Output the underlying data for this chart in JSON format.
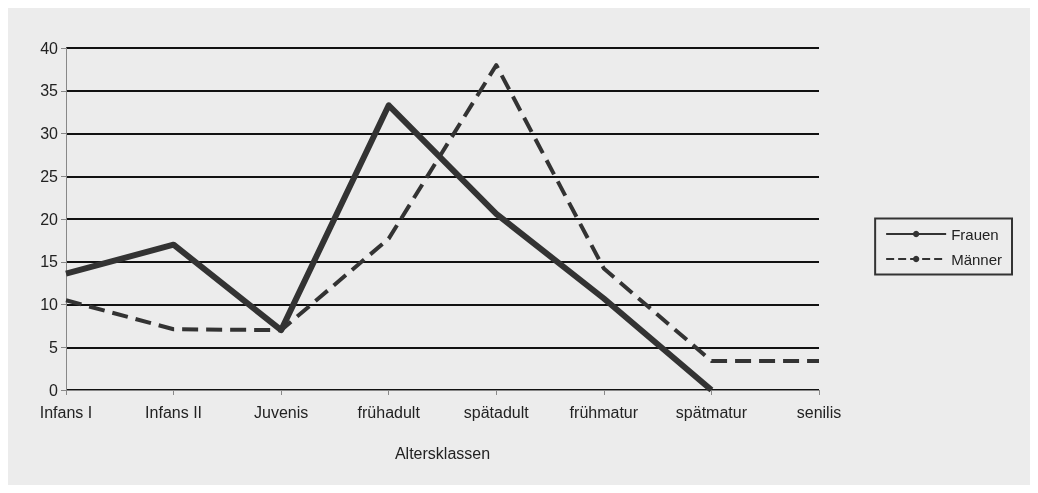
{
  "chart_data": {
    "type": "line",
    "xlabel": "Altersklassen",
    "categories": [
      "Infans I",
      "Infans II",
      "Juvenis",
      "frühadult",
      "spätadult",
      "frühmatur",
      "spätmatur",
      "senilis"
    ],
    "series": [
      {
        "name": "Frauen",
        "color": "#333333",
        "line_style": "solid",
        "values": [
          13.6,
          17,
          7,
          33.3,
          20.6,
          10.7,
          0,
          null
        ]
      },
      {
        "name": "Männer",
        "color": "#333333",
        "line_style": "dashed",
        "values": [
          10.5,
          7.1,
          7,
          17.7,
          38,
          14.2,
          3.4,
          3.4
        ]
      }
    ],
    "ylim": [
      0,
      40
    ],
    "yticks": [
      0,
      5,
      10,
      15,
      20,
      25,
      30,
      35,
      40
    ],
    "grid": "y",
    "legend": "right",
    "marker": "none"
  }
}
